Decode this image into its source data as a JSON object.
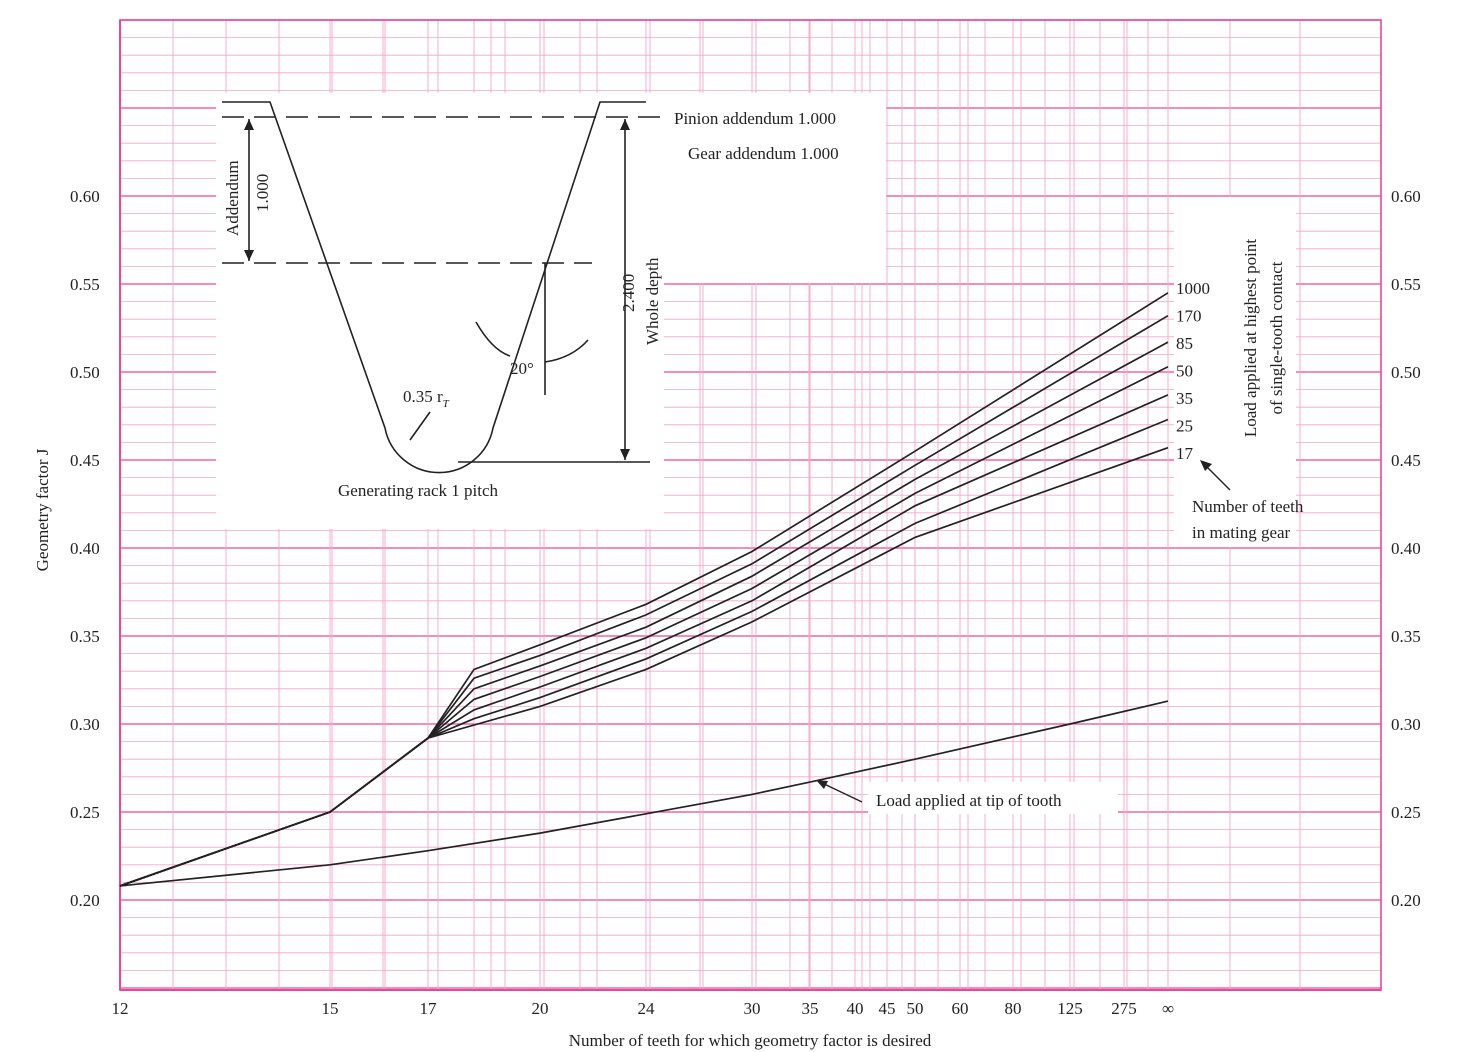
{
  "chart_data": {
    "type": "line",
    "title": "",
    "xlabel": "Number of teeth for which geometry factor is desired",
    "ylabel": "Geometry factor J",
    "x_scale": "nonlinear (tooth count)",
    "x_ticks": [
      "12",
      "15",
      "17",
      "20",
      "24",
      "30",
      "35",
      "40",
      "45",
      "50",
      "60",
      "80",
      "125",
      "275",
      "∞"
    ],
    "y_ticks": [
      "0.20",
      "0.25",
      "0.30",
      "0.35",
      "0.40",
      "0.45",
      "0.50",
      "0.55",
      "0.60"
    ],
    "ylim": [
      0.15,
      0.7
    ],
    "grid": true,
    "curve_legend_title": "Number of teeth in mating gear",
    "group_label": "Load applied at highest point of single-tooth contact",
    "series": [
      {
        "name": "1000",
        "x": [
          "12",
          "15",
          "17",
          "18",
          "20",
          "24",
          "30",
          "50",
          "∞"
        ],
        "y": [
          0.208,
          0.25,
          0.292,
          0.331,
          0.345,
          0.368,
          0.398,
          0.455,
          0.545
        ]
      },
      {
        "name": "170",
        "x": [
          "12",
          "15",
          "17",
          "18",
          "20",
          "24",
          "30",
          "50",
          "∞"
        ],
        "y": [
          0.208,
          0.25,
          0.292,
          0.326,
          0.339,
          0.362,
          0.391,
          0.447,
          0.532
        ]
      },
      {
        "name": "85",
        "x": [
          "12",
          "15",
          "17",
          "18",
          "20",
          "24",
          "30",
          "50",
          "∞"
        ],
        "y": [
          0.208,
          0.25,
          0.292,
          0.32,
          0.333,
          0.355,
          0.384,
          0.439,
          0.517
        ]
      },
      {
        "name": "50",
        "x": [
          "12",
          "15",
          "17",
          "18",
          "20",
          "24",
          "30",
          "50",
          "∞"
        ],
        "y": [
          0.208,
          0.25,
          0.292,
          0.314,
          0.327,
          0.349,
          0.377,
          0.431,
          0.503
        ]
      },
      {
        "name": "35",
        "x": [
          "12",
          "15",
          "17",
          "18",
          "20",
          "24",
          "30",
          "50",
          "∞"
        ],
        "y": [
          0.208,
          0.25,
          0.292,
          0.308,
          0.321,
          0.343,
          0.37,
          0.424,
          0.487
        ]
      },
      {
        "name": "25",
        "x": [
          "12",
          "15",
          "17",
          "18",
          "20",
          "24",
          "30",
          "50",
          "∞"
        ],
        "y": [
          0.208,
          0.25,
          0.292,
          0.303,
          0.315,
          0.337,
          0.364,
          0.414,
          0.473
        ]
      },
      {
        "name": "17",
        "x": [
          "12",
          "15",
          "17",
          "20",
          "24",
          "30",
          "50",
          "∞"
        ],
        "y": [
          0.208,
          0.25,
          0.292,
          0.31,
          0.331,
          0.358,
          0.406,
          0.457
        ]
      },
      {
        "name": "Load applied at tip of tooth",
        "x": [
          "12",
          "15",
          "17",
          "20",
          "24",
          "30",
          "35",
          "50",
          "125",
          "∞"
        ],
        "y": [
          0.208,
          0.22,
          0.228,
          0.238,
          0.249,
          0.26,
          0.267,
          0.28,
          0.3,
          0.313
        ]
      }
    ],
    "inset": {
      "caption": "Generating rack 1 pitch",
      "pinion_addendum": "Pinion addendum 1.000",
      "gear_addendum": "Gear addendum 1.000",
      "addendum_label": "Addendum",
      "addendum_value": "1.000",
      "whole_depth_label": "Whole depth",
      "whole_depth_value": "2.400",
      "angle": "20°",
      "fillet": "0.35 r",
      "fillet_sub": "T"
    },
    "colors": {
      "grid": "#e8479a",
      "grid_light": "#f3a6cc",
      "curve": "#222222"
    }
  }
}
